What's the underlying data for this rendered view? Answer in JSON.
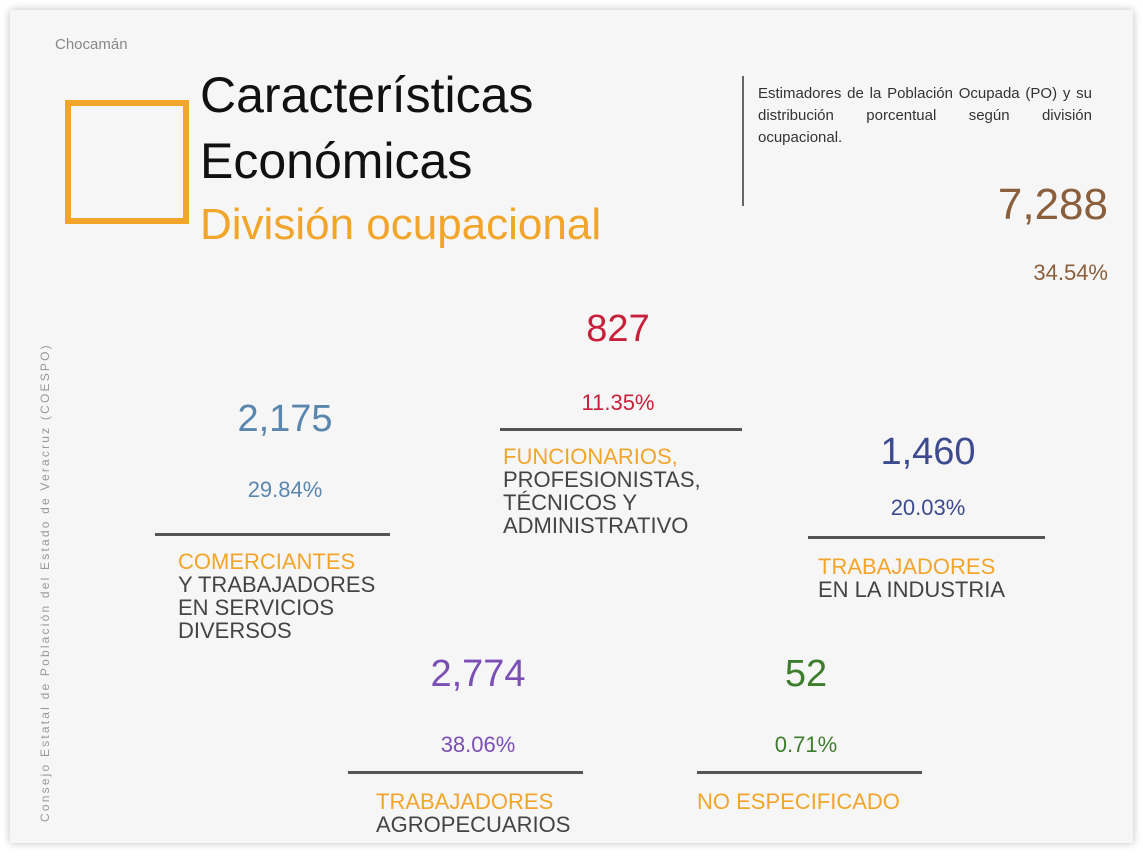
{
  "header": {
    "municipality": "Chocamán",
    "side_text": "Consejo Estatal de Población del Estado de Veracruz (COESPO)",
    "title_lines": [
      "Características",
      "Económicas"
    ],
    "subtitle": "División ocupacional",
    "description": "Estimadores de la Población Ocupada (PO) y su distribución porcentual según división ocupacional.",
    "total": "7,288",
    "total_percent": "34.54%"
  },
  "groups": [
    {
      "value": "827",
      "percent": "11.35%",
      "highlight": [
        "FUNCIONARIOS,"
      ],
      "rest": [
        "PROFESIONISTAS,",
        "TÉCNICOS Y",
        "ADMINISTRATIVO"
      ]
    },
    {
      "value": "2,175",
      "percent": "29.84%",
      "highlight": [
        "COMERCIANTES"
      ],
      "rest": [
        "Y TRABAJADORES",
        "EN SERVICIOS",
        "DIVERSOS"
      ]
    },
    {
      "value": "1,460",
      "percent": "20.03%",
      "highlight": [
        "TRABAJADORES"
      ],
      "rest": [
        "EN LA INDUSTRIA"
      ]
    },
    {
      "value": "2,774",
      "percent": "38.06%",
      "highlight": [
        "TRABAJADORES"
      ],
      "rest": [
        "AGROPECUARIOS"
      ]
    },
    {
      "value": "52",
      "percent": "0.71%",
      "highlight": [
        "NO ESPECIFICADO"
      ],
      "rest": []
    }
  ]
}
